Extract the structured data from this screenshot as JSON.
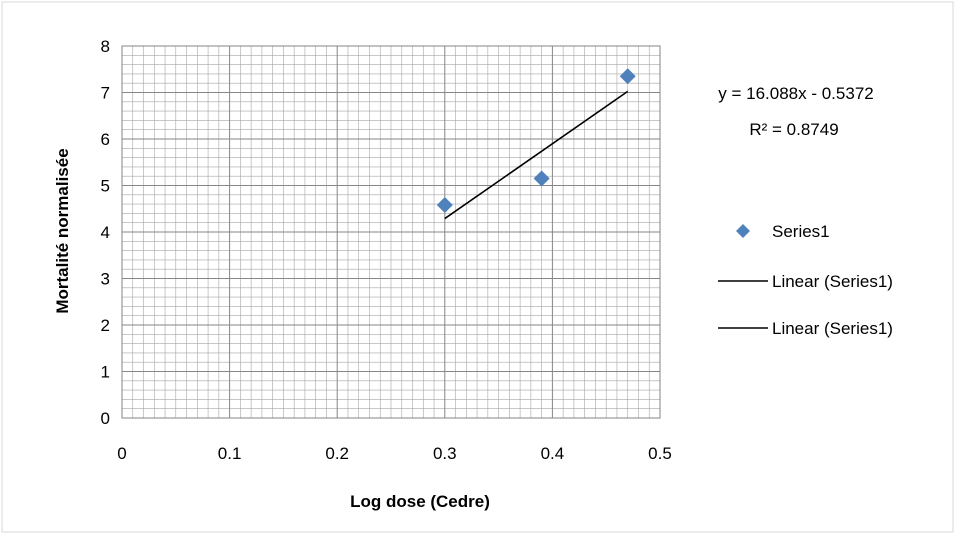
{
  "chart_data": {
    "type": "scatter",
    "title": "",
    "xlabel": "Log dose (Cedre)",
    "ylabel": "Mortalité normalisée",
    "xlim": [
      0,
      0.5
    ],
    "ylim": [
      0,
      8
    ],
    "xticks": [
      "0",
      "0.1",
      "0.2",
      "0.3",
      "0.4",
      "0.5"
    ],
    "yticks": [
      "0",
      "1",
      "2",
      "3",
      "4",
      "5",
      "6",
      "7",
      "8"
    ],
    "grid": {
      "major": true,
      "minor": true
    },
    "legend_position": "right",
    "series": [
      {
        "name": "Series1",
        "kind": "markers",
        "marker": "diamond",
        "color": "#4F81BD",
        "points": [
          {
            "x": 0.3,
            "y": 4.58
          },
          {
            "x": 0.39,
            "y": 5.15
          },
          {
            "x": 0.47,
            "y": 7.35
          }
        ]
      }
    ],
    "trendline": {
      "slope": 16.088,
      "intercept": -0.5372,
      "x_range": [
        0.3,
        0.47
      ],
      "color": "#000000"
    },
    "annotations": {
      "equation": "y = 16.088x - 0.5372",
      "r_squared": "R² = 0.8749"
    },
    "legend": [
      {
        "label": "Series1",
        "symbol": "diamond",
        "color": "#4F81BD"
      },
      {
        "label": "Linear (Series1)",
        "symbol": "line",
        "color": "#000000"
      },
      {
        "label": "Linear (Series1)",
        "symbol": "line",
        "color": "#000000"
      }
    ]
  }
}
